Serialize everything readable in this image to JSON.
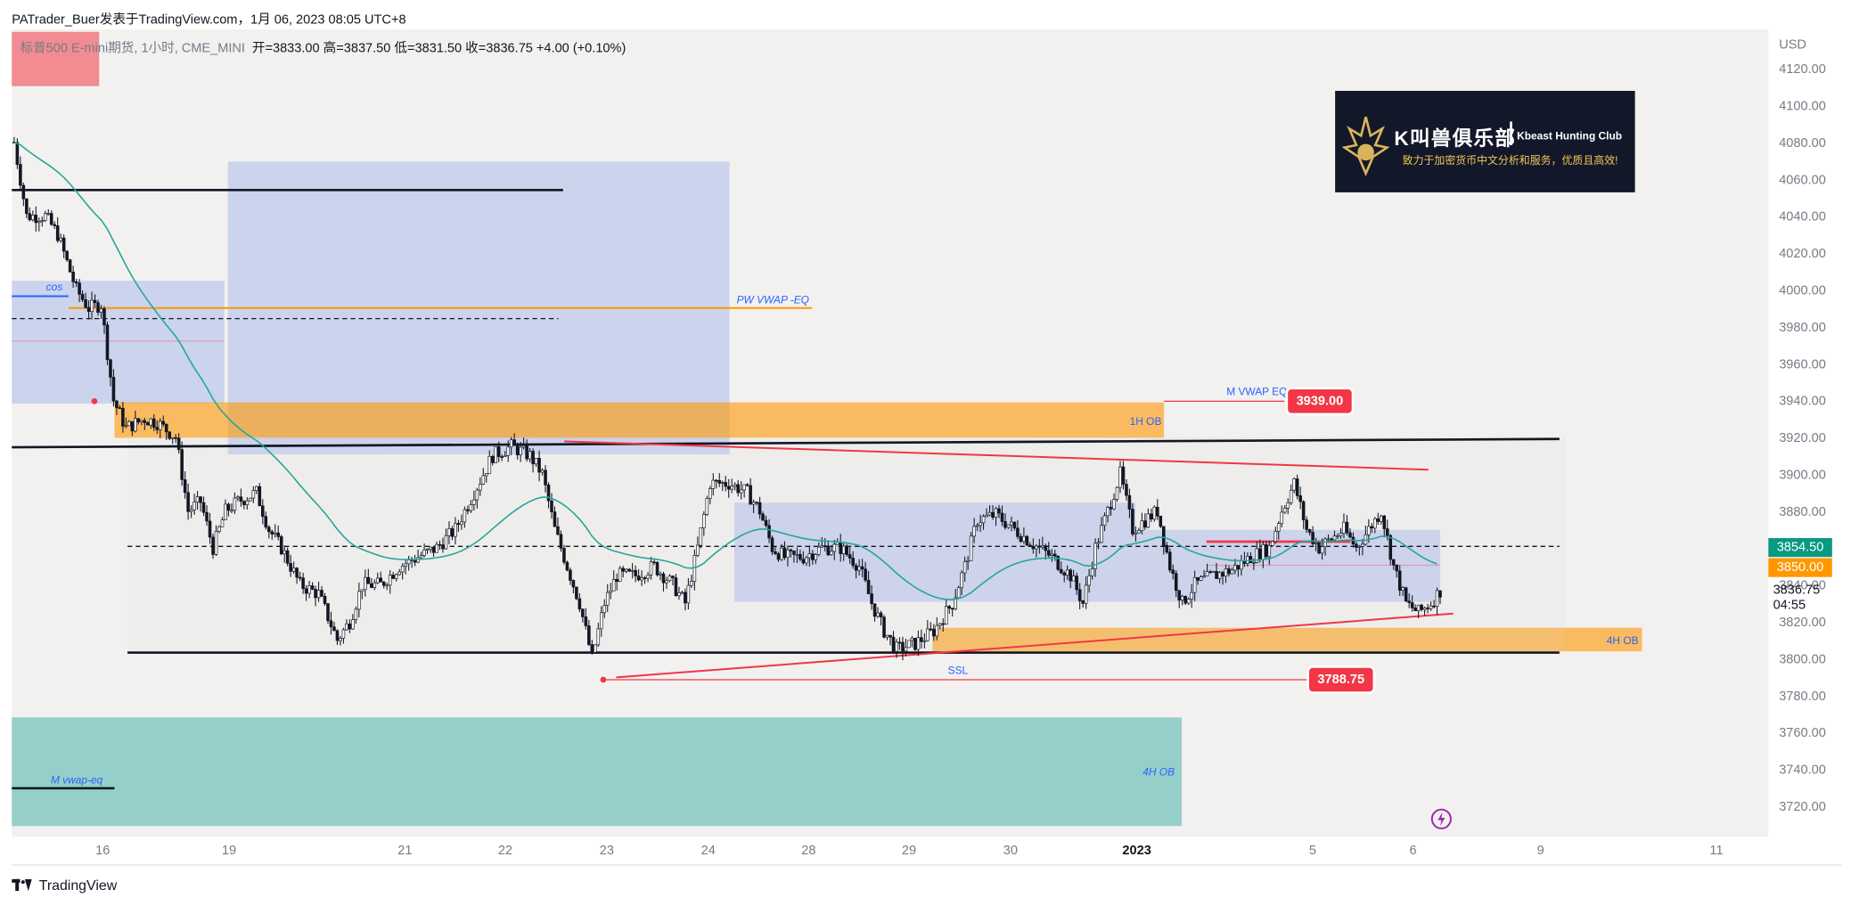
{
  "header": {
    "title": "PATrader_Buer发表于TradingView.com，1月 06, 2023 08:05 UTC+8",
    "symbol_line": "标普500 E-mini期货, 1小时, CME_MINI",
    "ohlc": "开=3833.00  高=3837.50  低=3831.50  收=3836.75  +4.00 (+0.10%)"
  },
  "footer": {
    "brand": "TradingView"
  },
  "logo": {
    "title": "K叫兽俱乐部",
    "subtitle": "Kbeast Hunting Club",
    "tagline": "致力于加密货币中文分析和服务，优质且高效!"
  },
  "colors": {
    "bull": "#ffffff",
    "bear": "#131722",
    "ob_orange": "#ff9800",
    "zone_blue": "#6f8fe8",
    "zone_teal": "#26a69a",
    "trend_red": "#f23645",
    "vwap": "#26a69a",
    "label_text": "#2962ff"
  },
  "price_axis": {
    "currency": "USD",
    "last_price": "3854.50",
    "level_price": "3850.00",
    "close_price": "3836.75",
    "countdown": "04:55"
  },
  "annotations": {
    "cos": "cos",
    "pw_vwap_eq": "PW VWAP -EQ",
    "ob_1h": "1H OB",
    "m_vwap_eq": "M VWAP EQ",
    "m_vwap_eq_price": "3939.00",
    "ob_4h": "4H OB",
    "ssl": "SSL",
    "ssl_price": "3788.75",
    "m_vwap_eq_lower": "M  vwap-eq",
    "ob_4h_lower": "4H  OB"
  },
  "chart_data": {
    "type": "candlestick",
    "title": "标普500 E-mini期货, 1小时, CME_MINI",
    "ylabel": "USD",
    "ylim": [
      3710,
      4130
    ],
    "y_ticks": [
      3720,
      3740,
      3760,
      3780,
      3800,
      3820,
      3840,
      3860,
      3880,
      3900,
      3920,
      3940,
      3960,
      3980,
      4000,
      4020,
      4040,
      4060,
      4080,
      4100,
      4120
    ],
    "x_ticks": [
      "16",
      "19",
      "21",
      "22",
      "23",
      "24",
      "28",
      "29",
      "30",
      "2023",
      "5",
      "6",
      "9",
      "11"
    ],
    "price_path": [
      [
        0,
        4080
      ],
      [
        4,
        4040
      ],
      [
        10,
        4040
      ],
      [
        14,
        4030
      ],
      [
        20,
        4000
      ],
      [
        24,
        3990
      ],
      [
        28,
        3992
      ],
      [
        32,
        3940
      ],
      [
        36,
        3925
      ],
      [
        42,
        3930
      ],
      [
        46,
        3928
      ],
      [
        52,
        3920
      ],
      [
        56,
        3880
      ],
      [
        60,
        3885
      ],
      [
        64,
        3860
      ],
      [
        68,
        3880
      ],
      [
        72,
        3885
      ],
      [
        78,
        3890
      ],
      [
        82,
        3870
      ],
      [
        86,
        3860
      ],
      [
        92,
        3840
      ],
      [
        98,
        3835
      ],
      [
        104,
        3810
      ],
      [
        108,
        3820
      ],
      [
        112,
        3840
      ],
      [
        118,
        3840
      ],
      [
        124,
        3850
      ],
      [
        130,
        3855
      ],
      [
        136,
        3860
      ],
      [
        142,
        3870
      ],
      [
        148,
        3890
      ],
      [
        154,
        3910
      ],
      [
        160,
        3915
      ],
      [
        166,
        3910
      ],
      [
        170,
        3900
      ],
      [
        174,
        3870
      ],
      [
        178,
        3850
      ],
      [
        182,
        3830
      ],
      [
        186,
        3800
      ],
      [
        190,
        3830
      ],
      [
        194,
        3845
      ],
      [
        200,
        3845
      ],
      [
        206,
        3850
      ],
      [
        212,
        3840
      ],
      [
        216,
        3830
      ],
      [
        220,
        3860
      ],
      [
        224,
        3895
      ],
      [
        230,
        3895
      ],
      [
        236,
        3890
      ],
      [
        240,
        3880
      ],
      [
        244,
        3860
      ],
      [
        248,
        3855
      ],
      [
        254,
        3855
      ],
      [
        260,
        3860
      ],
      [
        266,
        3860
      ],
      [
        272,
        3850
      ],
      [
        276,
        3830
      ],
      [
        280,
        3815
      ],
      [
        284,
        3805
      ],
      [
        290,
        3808
      ],
      [
        296,
        3815
      ],
      [
        302,
        3830
      ],
      [
        306,
        3850
      ],
      [
        310,
        3875
      ],
      [
        316,
        3878
      ],
      [
        322,
        3870
      ],
      [
        328,
        3862
      ],
      [
        334,
        3855
      ],
      [
        340,
        3845
      ],
      [
        344,
        3830
      ],
      [
        348,
        3860
      ],
      [
        352,
        3880
      ],
      [
        356,
        3900
      ],
      [
        360,
        3870
      ],
      [
        364,
        3875
      ],
      [
        368,
        3880
      ],
      [
        372,
        3850
      ],
      [
        376,
        3830
      ],
      [
        380,
        3840
      ],
      [
        386,
        3845
      ],
      [
        392,
        3848
      ],
      [
        398,
        3855
      ],
      [
        404,
        3860
      ],
      [
        408,
        3880
      ],
      [
        412,
        3895
      ],
      [
        416,
        3870
      ],
      [
        420,
        3860
      ],
      [
        424,
        3865
      ],
      [
        428,
        3870
      ],
      [
        432,
        3860
      ],
      [
        436,
        3870
      ],
      [
        440,
        3880
      ],
      [
        444,
        3850
      ],
      [
        448,
        3830
      ],
      [
        452,
        3825
      ],
      [
        456,
        3830
      ],
      [
        459,
        3836.75
      ]
    ],
    "hlines": [
      {
        "label": "",
        "price": 4052
      },
      {
        "label": "",
        "price": 3917
      },
      {
        "label": "",
        "price": 3804
      },
      {
        "label": "M VWAP EQ",
        "price": 3939
      },
      {
        "label": "SSL",
        "price": 3788.75
      }
    ],
    "zones": [
      {
        "label": "1H OB",
        "from": 3920,
        "to": 3940
      },
      {
        "label": "4H OB",
        "from": 3804,
        "to": 3816
      },
      {
        "label": "4H  OB",
        "from": 3710,
        "to": 3768
      },
      {
        "label": "PW VWAP -EQ",
        "price": 3990
      }
    ]
  }
}
